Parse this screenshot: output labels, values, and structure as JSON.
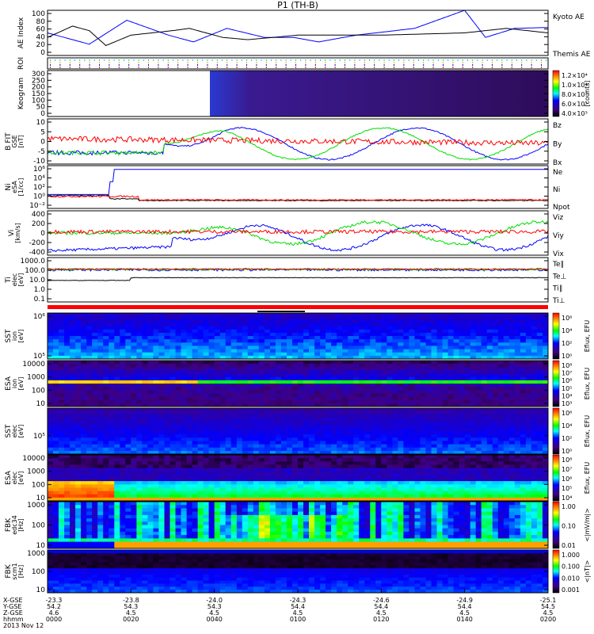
{
  "title": "P1 (TH-B)",
  "chart_data": {
    "type": "line+heatmap",
    "x_range_hhmm": [
      "0000",
      "0200"
    ],
    "panels": [
      {
        "id": "ae",
        "ylabel": [
          "AE Index"
        ],
        "ticks": [
          "100",
          "80",
          "60",
          "40",
          "20",
          "0"
        ],
        "ylim": [
          0,
          100
        ],
        "legend": [
          {
            "text": "Kyoto AE",
            "color": "#0000ff"
          },
          {
            "text": "Themis AE",
            "color": "#000000"
          }
        ],
        "series": [
          {
            "name": "Kyoto AE",
            "color": "#0000ff",
            "t_min": [
              0,
              10,
              19,
              29,
              35,
              43,
              52,
              59,
              65,
              74,
              88,
              100,
              105,
              112,
              120
            ],
            "values": [
              50,
              25,
              78,
              45,
              30,
              60,
              40,
              40,
              30,
              45,
              60,
              100,
              40,
              60,
              62
            ]
          },
          {
            "name": "Themis AE",
            "color": "#000000",
            "t_min": [
              0,
              6,
              10,
              14,
              20,
              30,
              34,
              42,
              48,
              60,
              80,
              100,
              110,
              115,
              120
            ],
            "values": [
              40,
              65,
              55,
              22,
              45,
              55,
              60,
              40,
              35,
              45,
              45,
              50,
              60,
              55,
              50
            ]
          }
        ]
      },
      {
        "id": "roi",
        "ylabel": [
          "ROI"
        ]
      },
      {
        "id": "keogram",
        "ylabel": [
          "Keogram"
        ],
        "ticks": [
          "300",
          "250",
          "200",
          "150",
          "100",
          "50",
          "0"
        ],
        "ylim": [
          0,
          300
        ],
        "colorbar": {
          "labels": [
            "1.2×10⁴",
            "1.0×10⁴",
            "8.0×10³",
            "6.0×10³",
            "4.0×10³"
          ],
          "unit": "[counts]"
        }
      },
      {
        "id": "bfit",
        "ylabel": [
          "B FIT",
          "GSE",
          "[nT]"
        ],
        "ticks": [
          "10",
          "5",
          "0",
          "-5",
          "-10"
        ],
        "ylim": [
          -10,
          10
        ],
        "legend": [
          {
            "text": "Bz",
            "color": "#ff0000"
          },
          {
            "text": "By",
            "color": "#00dd00"
          },
          {
            "text": "Bx",
            "color": "#0000ff"
          }
        ]
      },
      {
        "id": "ni",
        "ylabel": [
          "Ni",
          "eSA",
          "[1/cc]"
        ],
        "ticks": [
          "10⁶",
          "10⁴",
          "10²",
          "10⁰",
          "10⁻²"
        ],
        "legend": [
          {
            "text": "Ne",
            "color": "#ff0000"
          },
          {
            "text": "Ni",
            "color": "#000000"
          },
          {
            "text": "Npot",
            "color": "#0000ff"
          }
        ]
      },
      {
        "id": "vi",
        "ylabel": [
          "Vi",
          "[km/s]"
        ],
        "ticks": [
          "400",
          "200",
          "0",
          "-200",
          "-400"
        ],
        "ylim": [
          -500,
          500
        ],
        "legend": [
          {
            "text": "Viz",
            "color": "#ff0000"
          },
          {
            "text": "Viy",
            "color": "#00dd00"
          },
          {
            "text": "Vix",
            "color": "#0000ff"
          }
        ]
      },
      {
        "id": "ti",
        "ylabel": [
          "Ti",
          "elec",
          "[eV]"
        ],
        "ticks": [
          "1000.0",
          "100.0",
          "10.0",
          "1.0",
          "0.1"
        ],
        "legend": [
          {
            "text": "Te∥",
            "color": "#000000"
          },
          {
            "text": "Te⊥",
            "color": "#ff0000"
          },
          {
            "text": "Ti∥",
            "color": "#00dd00"
          },
          {
            "text": "Ti⊥",
            "color": "#0000ff"
          }
        ]
      },
      {
        "id": "sst_ion",
        "ylabel": [
          "SST",
          "ion",
          "[eV]"
        ],
        "ticks": [
          "10⁶",
          "10⁵"
        ],
        "colorbar": {
          "labels": [
            "10⁶",
            "10⁴",
            "10²",
            "10⁰"
          ],
          "unit": "Eflux, EFU"
        }
      },
      {
        "id": "esa_ion",
        "ylabel": [
          "ESA",
          "ion",
          "[eV]"
        ],
        "ticks": [
          "10000",
          "1000",
          "100",
          "10"
        ],
        "colorbar": {
          "labels": [
            "10⁸",
            "10⁷",
            "10⁶",
            "10⁵",
            "10⁴",
            "10³"
          ],
          "unit": "Eflux, EFU"
        }
      },
      {
        "id": "sst_elec",
        "ylabel": [
          "SST",
          "elec",
          "[eV]"
        ],
        "ticks": [
          "10⁵"
        ],
        "colorbar": {
          "labels": [
            "10⁶",
            "10⁴",
            "10²",
            "10⁰"
          ],
          "unit": "Eflux, EFU"
        }
      },
      {
        "id": "esa_elec",
        "ylabel": [
          "ESA",
          "elec",
          "[eV]"
        ],
        "ticks": [
          "10000",
          "1000",
          "100",
          "10"
        ],
        "colorbar": {
          "labels": [
            "10⁸",
            "10⁷",
            "10⁶",
            "10⁵",
            "10⁴"
          ],
          "unit": "Eflux, EFU"
        }
      },
      {
        "id": "fbk_edc34",
        "ylabel": [
          "FBK",
          "edc34",
          "[Hz]"
        ],
        "ticks": [
          "1000",
          "100",
          "10"
        ],
        "colorbar": {
          "labels": [
            "1.00",
            "0.10",
            "0.01"
          ],
          "unit": "<|mV/m|>"
        }
      },
      {
        "id": "fbk_scm1",
        "ylabel": [
          "FBK",
          "scm1",
          "[Hz]"
        ],
        "ticks": [
          "1000",
          "100",
          "10"
        ],
        "colorbar": {
          "labels": [
            "1.000",
            "0.100",
            "0.010",
            "0.001"
          ],
          "unit": "<|nT|>"
        }
      }
    ]
  },
  "axis": {
    "row_labels": [
      "X-GSE",
      "Y-GSE",
      "Z-GSE",
      "hhmm"
    ],
    "date": "2013 Nov 12",
    "columns": [
      [
        "-23.3",
        "54.2",
        "4.6",
        "0000"
      ],
      [
        "-23.8",
        "54.3",
        "4.5",
        "0020"
      ],
      [
        "-24.0",
        "54.3",
        "4.5",
        "0040"
      ],
      [
        "-24.3",
        "54.4",
        "4.5",
        "0100"
      ],
      [
        "-24.6",
        "54.4",
        "4.5",
        "0120"
      ],
      [
        "-24.9",
        "54.4",
        "4.5",
        "0140"
      ],
      [
        "-25.1",
        "54.5",
        "4.5",
        "0200"
      ]
    ]
  }
}
